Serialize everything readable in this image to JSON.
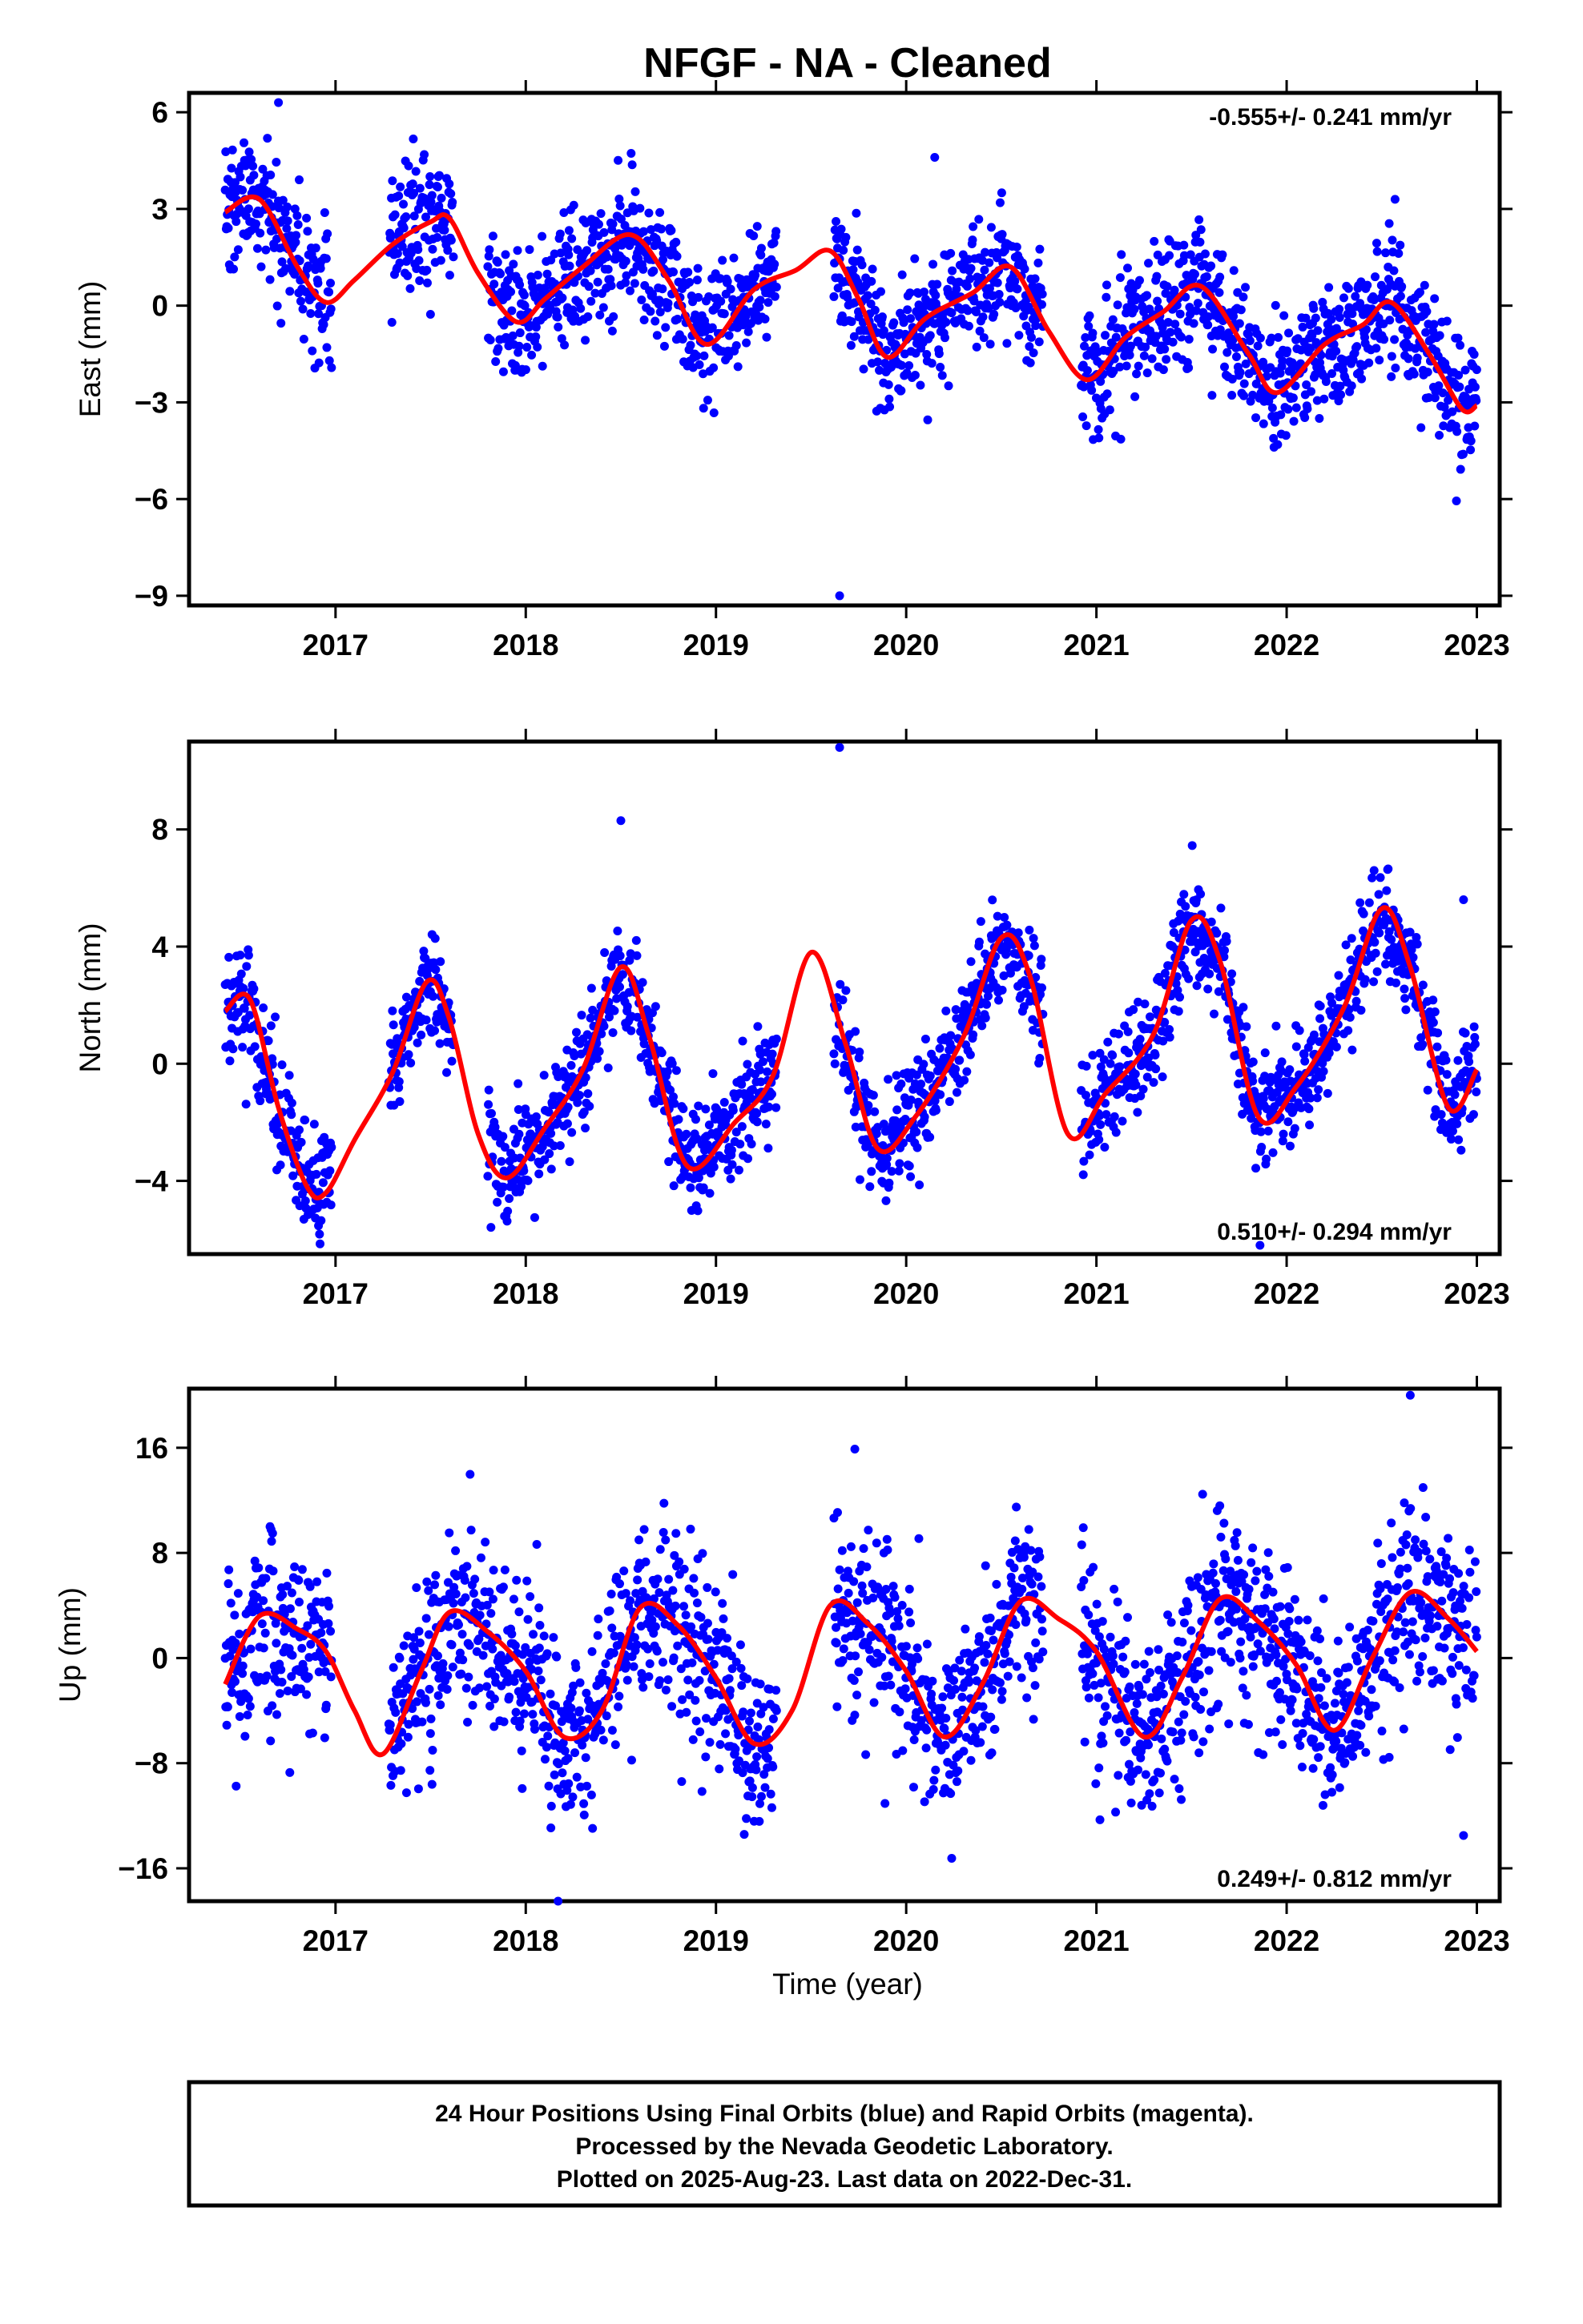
{
  "title": "NFGF  - NA - Cleaned",
  "colors": {
    "points": "#0000ff",
    "fit": "#ff0000",
    "frame": "#000000"
  },
  "footer": {
    "line1": "24 Hour Positions Using Final Orbits (blue) and Rapid Orbits (magenta).",
    "line2": "Processed by the Nevada Geodetic Laboratory.",
    "line3": "Plotted on 2025-Aug-23. Last data on 2022-Dec-31."
  },
  "chart_data": [
    {
      "type": "scatter",
      "panel": "east",
      "ylabel": "East (mm)",
      "xlabel": "",
      "rate_text": "-0.555+/- 0.241 mm/yr",
      "rate_position": "top-right",
      "xlim": [
        2016.23,
        2023.12
      ],
      "ylim": [
        -9.3,
        6.6
      ],
      "xticks": [
        2017,
        2018,
        2019,
        2020,
        2021,
        2022,
        2023
      ],
      "xtick_labels": [
        "2017",
        "2018",
        "2019",
        "2020",
        "2021",
        "2022",
        "2023"
      ],
      "yticks": [
        6,
        3,
        0,
        -3,
        -6,
        -9
      ],
      "ytick_labels": [
        "6",
        "3",
        "0",
        "−3",
        "−6",
        "−9"
      ],
      "fit": {
        "x": [
          2016.42,
          2016.6,
          2016.8,
          2016.95,
          2017.1,
          2017.3,
          2017.5,
          2017.6,
          2017.75,
          2017.95,
          2018.1,
          2018.3,
          2018.55,
          2018.75,
          2018.95,
          2019.2,
          2019.42,
          2019.6,
          2019.75,
          2019.9,
          2020.1,
          2020.35,
          2020.55,
          2020.75,
          2020.95,
          2021.15,
          2021.35,
          2021.55,
          2021.8,
          2021.95,
          2022.2,
          2022.4,
          2022.55,
          2022.75,
          2022.92,
          2023.0
        ],
        "y": [
          2.9,
          3.3,
          1.2,
          0.1,
          0.8,
          1.9,
          2.6,
          2.7,
          1.0,
          -0.5,
          0.2,
          1.2,
          2.2,
          0.8,
          -1.2,
          0.5,
          1.1,
          1.7,
          0.2,
          -1.6,
          -0.4,
          0.4,
          1.2,
          -0.8,
          -2.3,
          -1.0,
          -0.2,
          0.6,
          -1.5,
          -2.7,
          -1.2,
          -0.6,
          0.1,
          -1.5,
          -3.2,
          -3.1
        ]
      },
      "points": {
        "segments": [
          {
            "start": 2016.42,
            "end": 2016.98,
            "gap": []
          },
          {
            "start": 2017.28,
            "end": 2019.32,
            "gap": [
              2017.62,
              2017.8
            ]
          },
          {
            "start": 2019.62,
            "end": 2020.72,
            "gap": []
          },
          {
            "start": 2020.92,
            "end": 2023.0,
            "gap": []
          }
        ],
        "scatter_sd": 1.0,
        "outliers": [
          [
            2019.65,
            -9.0
          ],
          [
            2016.7,
            6.3
          ],
          [
            2020.15,
            4.6
          ],
          [
            2022.57,
            3.3
          ]
        ]
      }
    },
    {
      "type": "scatter",
      "panel": "north",
      "ylabel": "North (mm)",
      "xlabel": "",
      "rate_text": "0.510+/- 0.294 mm/yr",
      "rate_position": "bottom-right",
      "xlim": [
        2016.23,
        2023.12
      ],
      "ylim": [
        -6.5,
        11.0
      ],
      "xticks": [
        2017,
        2018,
        2019,
        2020,
        2021,
        2022,
        2023
      ],
      "xtick_labels": [
        "2017",
        "2018",
        "2019",
        "2020",
        "2021",
        "2022",
        "2023"
      ],
      "yticks": [
        8,
        4,
        0,
        -4
      ],
      "ytick_labels": [
        "8",
        "4",
        "0",
        "−4"
      ],
      "fit": {
        "x": [
          2016.42,
          2016.55,
          2016.7,
          2016.85,
          2016.95,
          2017.1,
          2017.3,
          2017.48,
          2017.6,
          2017.75,
          2017.9,
          2018.1,
          2018.3,
          2018.5,
          2018.65,
          2018.85,
          2019.1,
          2019.3,
          2019.5,
          2019.68,
          2019.85,
          2020.05,
          2020.3,
          2020.5,
          2020.65,
          2020.85,
          2021.05,
          2021.3,
          2021.5,
          2021.65,
          2021.85,
          2022.05,
          2022.3,
          2022.5,
          2022.65,
          2022.85,
          2023.0
        ],
        "y": [
          1.8,
          2.2,
          -1.5,
          -4.2,
          -4.4,
          -2.6,
          -0.3,
          2.8,
          1.5,
          -2.4,
          -3.9,
          -2.2,
          -0.2,
          3.3,
          0.9,
          -3.5,
          -2.0,
          -0.4,
          3.8,
          0.7,
          -2.9,
          -1.8,
          0.9,
          4.3,
          3.0,
          -2.4,
          -1.0,
          1.0,
          4.9,
          3.5,
          -1.8,
          -0.8,
          1.9,
          5.3,
          3.3,
          -1.5,
          -0.2
        ]
      },
      "points": {
        "segments": [
          {
            "start": 2016.42,
            "end": 2016.98,
            "gap": []
          },
          {
            "start": 2017.28,
            "end": 2019.32,
            "gap": [
              2017.62,
              2017.8
            ]
          },
          {
            "start": 2019.62,
            "end": 2020.72,
            "gap": []
          },
          {
            "start": 2020.92,
            "end": 2023.0,
            "gap": []
          }
        ],
        "scatter_sd": 0.9,
        "outliers": [
          [
            2019.65,
            10.8
          ],
          [
            2018.5,
            8.3
          ],
          [
            2021.86,
            -6.2
          ],
          [
            2022.93,
            5.6
          ]
        ]
      }
    },
    {
      "type": "scatter",
      "panel": "up",
      "ylabel": "Up (mm)",
      "xlabel": "Time (year)",
      "rate_text": "0.249+/- 0.812 mm/yr",
      "rate_position": "bottom-right",
      "xlim": [
        2016.23,
        2023.12
      ],
      "ylim": [
        -18.5,
        20.5
      ],
      "xticks": [
        2017,
        2018,
        2019,
        2020,
        2021,
        2022,
        2023
      ],
      "xtick_labels": [
        "2017",
        "2018",
        "2019",
        "2020",
        "2021",
        "2022",
        "2023"
      ],
      "yticks": [
        16,
        8,
        0,
        -8,
        -16
      ],
      "ytick_labels": [
        "16",
        "8",
        "0",
        "−8",
        "−16"
      ],
      "fit": {
        "x": [
          2016.42,
          2016.6,
          2016.8,
          2016.95,
          2017.1,
          2017.25,
          2017.45,
          2017.6,
          2017.8,
          2018.0,
          2018.2,
          2018.4,
          2018.6,
          2018.8,
          2019.0,
          2019.2,
          2019.4,
          2019.6,
          2019.8,
          2020.0,
          2020.2,
          2020.4,
          2020.6,
          2020.8,
          2021.0,
          2021.25,
          2021.45,
          2021.65,
          2021.85,
          2022.05,
          2022.25,
          2022.45,
          2022.65,
          2022.85,
          2023.0
        ],
        "y": [
          -2.0,
          3.2,
          2.2,
          0.5,
          -4.0,
          -7.3,
          -1.0,
          3.5,
          2.0,
          -1.0,
          -6.0,
          -4.0,
          3.8,
          2.5,
          -1.5,
          -6.5,
          -4.0,
          4.0,
          2.6,
          -1.0,
          -6.0,
          -2.0,
          4.3,
          3.0,
          0.5,
          -6.0,
          -1.5,
          4.5,
          2.8,
          -0.5,
          -5.5,
          0.0,
          5.0,
          3.0,
          0.5
        ]
      },
      "points": {
        "segments": [
          {
            "start": 2016.42,
            "end": 2016.98,
            "gap": []
          },
          {
            "start": 2017.28,
            "end": 2019.32,
            "gap": []
          },
          {
            "start": 2019.62,
            "end": 2020.72,
            "gap": []
          },
          {
            "start": 2020.92,
            "end": 2023.0,
            "gap": []
          }
        ],
        "scatter_sd": 3.5,
        "outliers": [
          [
            2022.65,
            20.0
          ],
          [
            2018.17,
            -18.5
          ],
          [
            2019.73,
            15.9
          ],
          [
            2022.93,
            -13.5
          ]
        ]
      }
    }
  ]
}
